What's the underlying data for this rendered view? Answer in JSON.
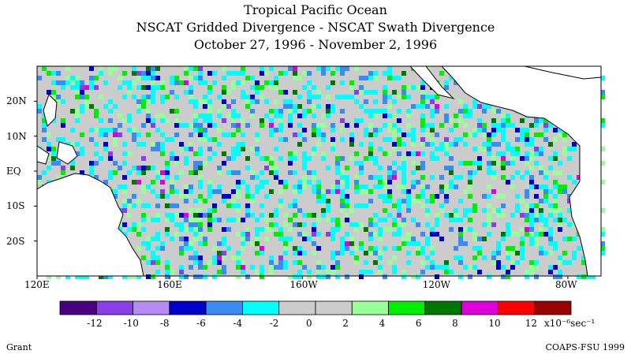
{
  "title_lines": [
    "Tropical Pacific Ocean",
    "NSCAT Gridded Divergence - NSCAT Swath Divergence",
    "October 27, 1996 - November 2, 1996"
  ],
  "map": {
    "lon_range": [
      120,
      290
    ],
    "lat_range": [
      -30,
      30
    ],
    "lat_ticks": [
      {
        "value": 20,
        "label": "20N"
      },
      {
        "value": 10,
        "label": "10N"
      },
      {
        "value": 0,
        "label": "EQ"
      },
      {
        "value": -10,
        "label": "10S"
      },
      {
        "value": -20,
        "label": "20S"
      }
    ],
    "lon_ticks": [
      {
        "value": 120,
        "label": "120E"
      },
      {
        "value": 160,
        "label": "160E"
      },
      {
        "value": 200,
        "label": "160W"
      },
      {
        "value": 240,
        "label": "120W"
      },
      {
        "value": 280,
        "label": "80W"
      }
    ],
    "land_color": "#ffffff",
    "background_value_color": "#cccccc"
  },
  "colorbar": {
    "colors": [
      "#4b0082",
      "#8a3ee8",
      "#b58cf2",
      "#0000cc",
      "#3a8cf2",
      "#00ffff",
      "#cccccc",
      "#cccccc",
      "#99ff99",
      "#00ee00",
      "#007700",
      "#dd00dd",
      "#ff0000",
      "#990000"
    ],
    "labels": [
      "-12",
      "-10",
      "-8",
      "-6",
      "-4",
      "-2",
      "0",
      "2",
      "4",
      "6",
      "8",
      "10",
      "12"
    ],
    "units": "x10⁻⁶sec⁻¹"
  },
  "credits": {
    "left": "Grant",
    "right": "COAPS-FSU 1999"
  }
}
